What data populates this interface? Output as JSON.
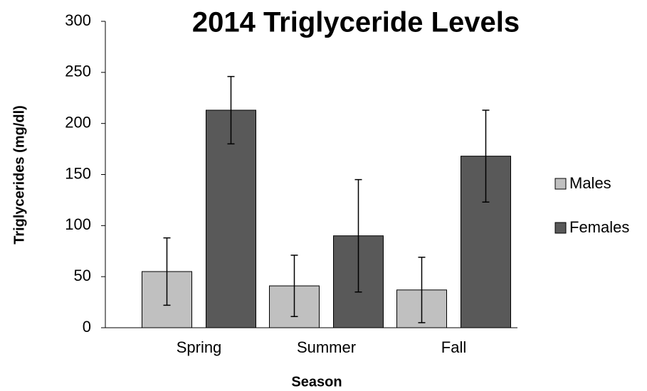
{
  "chart_data": {
    "type": "bar",
    "title": "2014 Triglyceride Levels",
    "x_label": "Season",
    "y_label": "Triglycerides (mg/dl)",
    "categories": [
      "Spring",
      "Summer",
      "Fall"
    ],
    "series": [
      {
        "name": "Males",
        "color": "#c0c0c0",
        "values": [
          55,
          41,
          37
        ],
        "errors": [
          33,
          30,
          32
        ]
      },
      {
        "name": "Females",
        "color": "#595959",
        "values": [
          213,
          90,
          168
        ],
        "errors": [
          33,
          55,
          45
        ]
      }
    ],
    "ylim": [
      0,
      300
    ],
    "yticks": [
      0,
      50,
      100,
      150,
      200,
      250,
      300
    ],
    "legend": "right"
  }
}
